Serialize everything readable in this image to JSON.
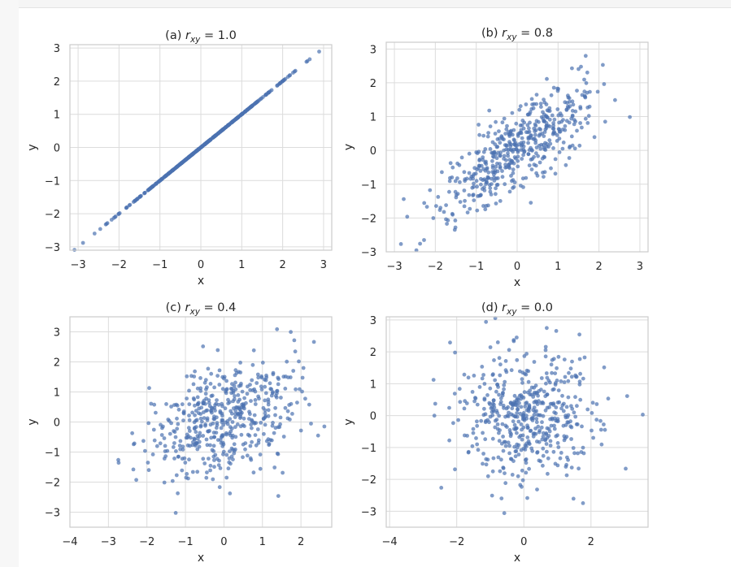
{
  "figure": {
    "background": "#ffffff",
    "plot_background": "#ffffff",
    "grid_color": "#dcdcdc",
    "spine_color": "#cccccc",
    "point_color": "#4c72b0"
  },
  "chart_data": [
    {
      "type": "scatter",
      "title_prefix": "(a)",
      "title_rhs": "= 1.0",
      "r": 1.0,
      "n": 500,
      "xlabel": "x",
      "ylabel": "y",
      "xlim": [
        -3.2,
        3.2
      ],
      "ylim": [
        -3.1,
        3.1
      ],
      "xticks": [
        -3,
        -2,
        -1,
        0,
        1,
        2,
        3
      ],
      "yticks": [
        -3,
        -2,
        -1,
        0,
        1,
        2,
        3
      ],
      "grid": true
    },
    {
      "type": "scatter",
      "title_prefix": "(b)",
      "title_rhs": "= 0.8",
      "r": 0.8,
      "n": 500,
      "xlabel": "x",
      "ylabel": "y",
      "xlim": [
        -3.2,
        3.2
      ],
      "ylim": [
        -3.0,
        3.2
      ],
      "xticks": [
        -3,
        -2,
        -1,
        0,
        1,
        2,
        3
      ],
      "yticks": [
        -3,
        -2,
        -1,
        0,
        1,
        2,
        3
      ],
      "grid": true
    },
    {
      "type": "scatter",
      "title_prefix": "(c)",
      "title_rhs": "= 0.4",
      "r": 0.4,
      "n": 500,
      "xlabel": "x",
      "ylabel": "y",
      "xlim": [
        -4.0,
        2.8
      ],
      "ylim": [
        -3.5,
        3.5
      ],
      "xticks": [
        -4,
        -3,
        -2,
        -1,
        0,
        1,
        2
      ],
      "yticks": [
        -3,
        -2,
        -1,
        0,
        1,
        2,
        3
      ],
      "grid": true
    },
    {
      "type": "scatter",
      "title_prefix": "(d)",
      "title_rhs": "= 0.0",
      "r": 0.0,
      "n": 500,
      "xlabel": "x",
      "ylabel": "y",
      "xlim": [
        -4.1,
        3.7
      ],
      "ylim": [
        -3.5,
        3.1
      ],
      "xticks": [
        -4,
        -2,
        0,
        2
      ],
      "yticks": [
        -3,
        -2,
        -1,
        0,
        1,
        2,
        3
      ],
      "grid": true
    }
  ]
}
